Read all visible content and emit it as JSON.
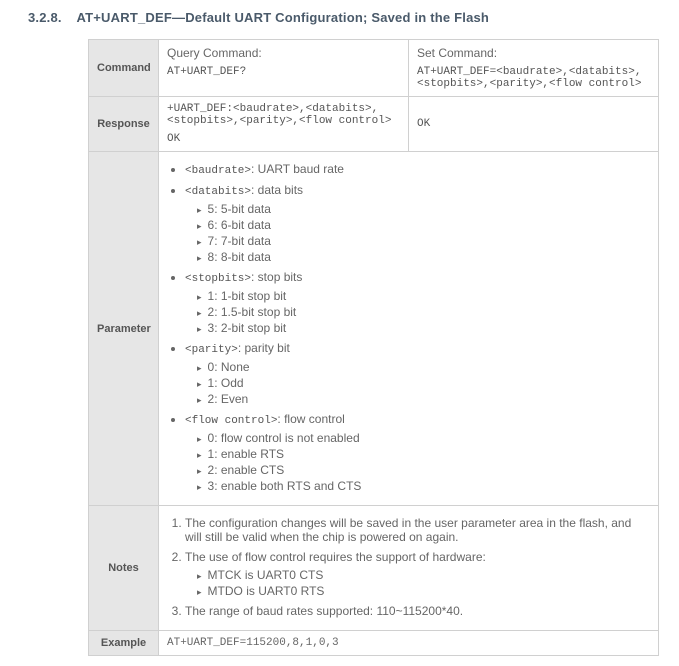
{
  "section": {
    "number": "3.2.8.",
    "title": "AT+UART_DEF—Default UART Configuration; Saved in the Flash"
  },
  "rows": {
    "command": {
      "label": "Command",
      "query_label": "Query Command:",
      "query_cmd": "AT+UART_DEF?",
      "set_label": "Set Command:",
      "set_cmd": "AT+UART_DEF=<baudrate>,<databits>,<stopbits>,<parity>,<flow control>"
    },
    "response": {
      "label": "Response",
      "query_resp_line1": "+UART_DEF:<baudrate>,<databits>,<stopbits>,<parity>,<flow control>",
      "query_resp_line2": "OK",
      "set_resp": "OK"
    },
    "parameter": {
      "label": "Parameter",
      "items": [
        {
          "term": "<baudrate>",
          "desc": ": UART baud rate",
          "subs": []
        },
        {
          "term": "<databits>",
          "desc": ": data bits",
          "subs": [
            "5: 5-bit data",
            "6: 6-bit data",
            "7: 7-bit data",
            "8: 8-bit data"
          ]
        },
        {
          "term": "<stopbits>",
          "desc": ": stop bits",
          "subs": [
            "1: 1-bit stop bit",
            "2: 1.5-bit stop bit",
            "3: 2-bit stop bit"
          ]
        },
        {
          "term": "<parity>",
          "desc": ": parity bit",
          "subs": [
            "0: None",
            "1: Odd",
            "2: Even"
          ]
        },
        {
          "term": "<flow control>",
          "desc": ": flow control",
          "subs": [
            "0: flow control is not enabled",
            "1: enable RTS",
            "2: enable CTS",
            "3: enable both RTS and CTS"
          ]
        }
      ]
    },
    "notes": {
      "label": "Notes",
      "n1": "The configuration changes will be saved in the user parameter area in the flash, and will still be valid when the chip is powered on again.",
      "n2": "The use of flow control requires the support of hardware:",
      "n2_subs": [
        "MTCK is UART0 CTS",
        "MTDO is UART0 RTS"
      ],
      "n3": "The range of baud rates supported: 110~115200*40."
    },
    "example": {
      "label": "Example",
      "text": "AT+UART_DEF=115200,8,1,0,3"
    }
  }
}
